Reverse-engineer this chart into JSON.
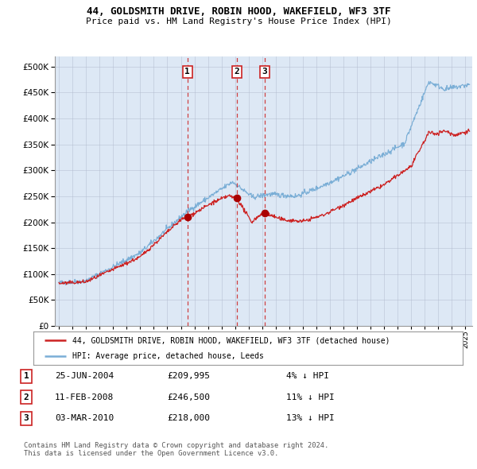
{
  "title1": "44, GOLDSMITH DRIVE, ROBIN HOOD, WAKEFIELD, WF3 3TF",
  "title2": "Price paid vs. HM Land Registry's House Price Index (HPI)",
  "plot_bg": "#dde8f5",
  "legend_label_red": "44, GOLDSMITH DRIVE, ROBIN HOOD, WAKEFIELD, WF3 3TF (detached house)",
  "legend_label_blue": "HPI: Average price, detached house, Leeds",
  "transactions": [
    {
      "num": 1,
      "date_x": 2004.49,
      "price": 209995
    },
    {
      "num": 2,
      "date_x": 2008.12,
      "price": 246500
    },
    {
      "num": 3,
      "date_x": 2010.17,
      "price": 218000
    }
  ],
  "transaction_table": [
    {
      "num": 1,
      "date": "25-JUN-2004",
      "price": "£209,995",
      "note": "4% ↓ HPI"
    },
    {
      "num": 2,
      "date": "11-FEB-2008",
      "price": "£246,500",
      "note": "11% ↓ HPI"
    },
    {
      "num": 3,
      "date": "03-MAR-2010",
      "price": "£218,000",
      "note": "13% ↓ HPI"
    }
  ],
  "footer": "Contains HM Land Registry data © Crown copyright and database right 2024.\nThis data is licensed under the Open Government Licence v3.0.",
  "ylim": [
    0,
    520000
  ],
  "yticks": [
    0,
    50000,
    100000,
    150000,
    200000,
    250000,
    300000,
    350000,
    400000,
    450000,
    500000
  ],
  "xlim_start": 1994.7,
  "xlim_end": 2025.5
}
